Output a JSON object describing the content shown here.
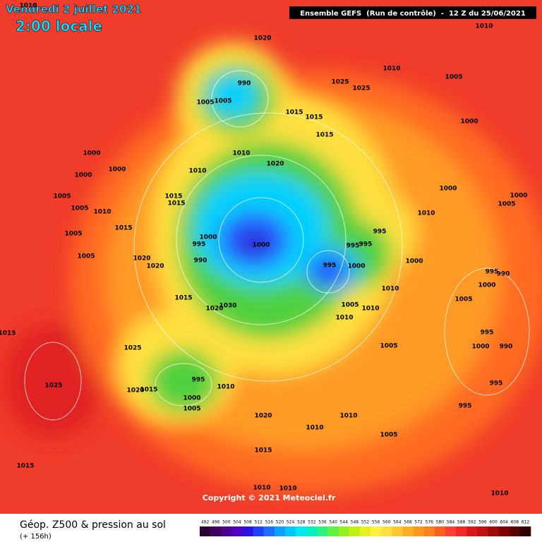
{
  "header": {
    "date": "Vendredi 2 juillet 2021",
    "time": "2:00 locale",
    "run": "Ensemble GEFS  (Run de contrôle)  -  12 Z du 25/06/2021"
  },
  "map": {
    "copyright": "Copyright © 2021 Meteociel.fr",
    "isobar_labels": [
      1010,
      1010,
      1020,
      1010,
      1005,
      1025,
      1025,
      990,
      1005,
      1005,
      1015,
      1015,
      1015,
      1000,
      1000,
      1000,
      1010,
      1020,
      1010,
      1000,
      1000,
      1000,
      1005,
      1005,
      1005,
      1010,
      1015,
      1015,
      1010,
      995,
      1015,
      1005,
      1000,
      995,
      1000,
      995,
      995,
      1005,
      1020,
      1020,
      990,
      995,
      1000,
      1000,
      995,
      990,
      1010,
      1000,
      1015,
      1020,
      1030,
      1005,
      1010,
      1010,
      1005,
      1015,
      995,
      1025,
      1005,
      1000,
      990,
      995,
      1010,
      1025,
      1020,
      1015,
      1000,
      1005,
      995,
      995,
      1020,
      1010,
      1010,
      1005,
      1015,
      1015,
      1010,
      1010,
      1010
    ]
  },
  "footer": {
    "title": "Géop. Z500 & pression au sol",
    "lead_time": "(+ 156h)",
    "scale": {
      "values": [
        492,
        496,
        500,
        504,
        508,
        512,
        516,
        520,
        524,
        528,
        532,
        536,
        540,
        544,
        548,
        552,
        556,
        560,
        564,
        568,
        572,
        576,
        580,
        584,
        588,
        592,
        596,
        600,
        604,
        608,
        612
      ],
      "colors": [
        "#2a0030",
        "#3d0060",
        "#4b0090",
        "#5000c0",
        "#3010e0",
        "#2040ff",
        "#2070ff",
        "#10a0ff",
        "#00c8ff",
        "#00e8f0",
        "#00f0c0",
        "#30f080",
        "#60f040",
        "#90f020",
        "#c0f010",
        "#e8f020",
        "#fff040",
        "#ffe040",
        "#ffc830",
        "#ffb020",
        "#ff9820",
        "#ff8020",
        "#ff6020",
        "#ff4030",
        "#f02828",
        "#d81818",
        "#c01010",
        "#a00808",
        "#800000",
        "#580000",
        "#300000"
      ]
    }
  }
}
